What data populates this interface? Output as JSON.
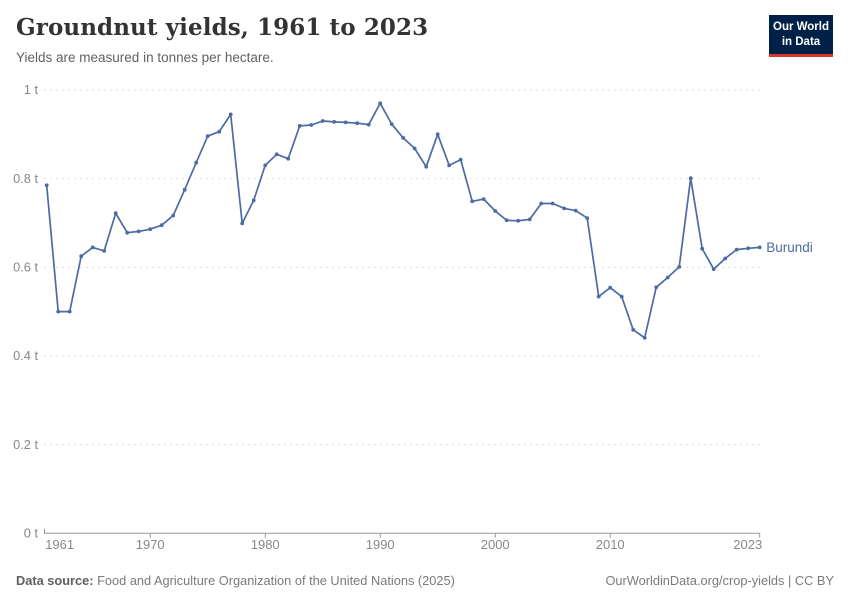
{
  "header": {
    "title": "Groundnut yields, 1961 to 2023",
    "subtitle": "Yields are measured in tonnes per hectare."
  },
  "logo": {
    "line1": "Our World",
    "line2": "in Data",
    "bg_color": "#002147",
    "accent_color": "#d7382d"
  },
  "footer": {
    "source_label": "Data source:",
    "source_text": "Food and Agriculture Organization of the United Nations (2025)",
    "link_text": "OurWorldinData.org/crop-yields",
    "separator": "|",
    "license_text": "CC BY"
  },
  "chart_data": {
    "type": "line",
    "title": "Groundnut yields, 1961 to 2023",
    "unit": "tonnes per hectare",
    "xlim": [
      1961,
      2023
    ],
    "ylim": [
      0,
      1
    ],
    "x_ticks": [
      1961,
      1970,
      1980,
      1990,
      2000,
      2010,
      2023
    ],
    "y_ticks": [
      0,
      0.2,
      0.4,
      0.6,
      0.8,
      1
    ],
    "y_tick_labels": [
      "0 t",
      "0.2 t",
      "0.4 t",
      "0.6 t",
      "0.8 t",
      "1 t"
    ],
    "grid": "dashed-horizontal",
    "legend_position": "end-of-line",
    "colors": {
      "line": "#4c6ba3",
      "grid": "#e0e0e0",
      "axis": "#999999",
      "tick_label": "#888888"
    },
    "series": [
      {
        "name": "Burundi",
        "color": "#4c6ba3",
        "x": [
          1961,
          1962,
          1963,
          1964,
          1965,
          1966,
          1967,
          1968,
          1969,
          1970,
          1971,
          1972,
          1973,
          1974,
          1975,
          1976,
          1977,
          1978,
          1979,
          1980,
          1981,
          1982,
          1983,
          1984,
          1985,
          1986,
          1987,
          1988,
          1989,
          1990,
          1991,
          1992,
          1993,
          1994,
          1995,
          1996,
          1997,
          1998,
          1999,
          2000,
          2001,
          2002,
          2003,
          2004,
          2005,
          2006,
          2007,
          2008,
          2009,
          2010,
          2011,
          2012,
          2013,
          2014,
          2015,
          2016,
          2017,
          2018,
          2019,
          2020,
          2021,
          2022,
          2023
        ],
        "values": [
          0.785,
          0.5,
          0.5,
          0.625,
          0.645,
          0.637,
          0.722,
          0.678,
          0.681,
          0.686,
          0.695,
          0.717,
          0.775,
          0.836,
          0.896,
          0.906,
          0.945,
          0.699,
          0.751,
          0.83,
          0.855,
          0.845,
          0.919,
          0.921,
          0.93,
          0.928,
          0.927,
          0.925,
          0.922,
          0.97,
          0.923,
          0.892,
          0.868,
          0.827,
          0.9,
          0.83,
          0.843,
          0.749,
          0.754,
          0.727,
          0.706,
          0.705,
          0.708,
          0.744,
          0.744,
          0.733,
          0.728,
          0.711,
          0.534,
          0.554,
          0.534,
          0.459,
          0.441,
          0.555,
          0.577,
          0.601,
          0.801,
          0.642,
          0.596,
          0.62,
          0.64,
          0.643,
          0.645
        ]
      }
    ]
  }
}
